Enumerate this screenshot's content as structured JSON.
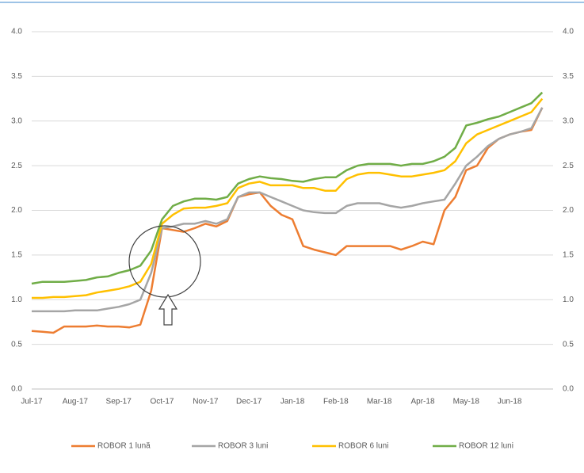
{
  "chart_data": {
    "type": "line",
    "categories": [
      "Jul-17",
      null,
      null,
      null,
      "Aug-17",
      null,
      null,
      null,
      "Sep-17",
      null,
      null,
      null,
      "Oct-17",
      null,
      null,
      null,
      "Nov-17",
      null,
      null,
      null,
      "Dec-17",
      null,
      null,
      null,
      "Jan-18",
      null,
      null,
      null,
      "Feb-18",
      null,
      null,
      null,
      "Mar-18",
      null,
      null,
      null,
      "Apr-18",
      null,
      null,
      null,
      "May-18",
      null,
      null,
      null,
      "Jun-18",
      null,
      null,
      null
    ],
    "series": [
      {
        "name": "ROBOR 1 lună",
        "color": "#ed7d31",
        "values": [
          0.65,
          0.64,
          0.63,
          0.7,
          0.7,
          0.7,
          0.71,
          0.7,
          0.7,
          0.69,
          0.72,
          1.1,
          1.8,
          1.78,
          1.76,
          1.8,
          1.85,
          1.82,
          1.88,
          2.15,
          2.18,
          2.2,
          2.05,
          1.95,
          1.9,
          1.6,
          1.56,
          1.53,
          1.5,
          1.6,
          1.6,
          1.6,
          1.6,
          1.6,
          1.56,
          1.6,
          1.65,
          1.62,
          2.0,
          2.15,
          2.45,
          2.5,
          2.7,
          2.8,
          2.85,
          2.88,
          2.9,
          3.15
        ]
      },
      {
        "name": "ROBOR 3 luni",
        "color": "#a5a5a5",
        "values": [
          0.87,
          0.87,
          0.87,
          0.87,
          0.88,
          0.88,
          0.88,
          0.9,
          0.92,
          0.95,
          1.0,
          1.3,
          1.8,
          1.82,
          1.85,
          1.85,
          1.88,
          1.85,
          1.9,
          2.15,
          2.2,
          2.2,
          2.15,
          2.1,
          2.05,
          2.0,
          1.98,
          1.97,
          1.97,
          2.05,
          2.08,
          2.08,
          2.08,
          2.05,
          2.03,
          2.05,
          2.08,
          2.1,
          2.12,
          2.3,
          2.5,
          2.6,
          2.72,
          2.8,
          2.85,
          2.88,
          2.92,
          3.15
        ]
      },
      {
        "name": "ROBOR 6 luni",
        "color": "#ffc000",
        "values": [
          1.02,
          1.02,
          1.03,
          1.03,
          1.04,
          1.05,
          1.08,
          1.1,
          1.12,
          1.15,
          1.2,
          1.4,
          1.85,
          1.95,
          2.02,
          2.03,
          2.03,
          2.05,
          2.08,
          2.25,
          2.3,
          2.32,
          2.28,
          2.28,
          2.28,
          2.25,
          2.25,
          2.22,
          2.22,
          2.35,
          2.4,
          2.42,
          2.42,
          2.4,
          2.38,
          2.38,
          2.4,
          2.42,
          2.45,
          2.55,
          2.75,
          2.85,
          2.9,
          2.95,
          3.0,
          3.05,
          3.1,
          3.25
        ]
      },
      {
        "name": "ROBOR 12 luni",
        "color": "#70ad47",
        "values": [
          1.18,
          1.2,
          1.2,
          1.2,
          1.21,
          1.22,
          1.25,
          1.26,
          1.3,
          1.33,
          1.38,
          1.55,
          1.9,
          2.05,
          2.1,
          2.13,
          2.13,
          2.12,
          2.15,
          2.3,
          2.35,
          2.38,
          2.36,
          2.35,
          2.33,
          2.32,
          2.35,
          2.37,
          2.37,
          2.45,
          2.5,
          2.52,
          2.52,
          2.52,
          2.5,
          2.52,
          2.52,
          2.55,
          2.6,
          2.7,
          2.95,
          2.98,
          3.02,
          3.05,
          3.1,
          3.15,
          3.2,
          3.32
        ]
      }
    ],
    "ylim": [
      0,
      4
    ],
    "yticks": [
      {
        "value": 0,
        "label": "0.0"
      },
      {
        "value": 0.5,
        "label": "0.5"
      },
      {
        "value": 1,
        "label": "1.0"
      },
      {
        "value": 1.5,
        "label": "1.5"
      },
      {
        "value": 2,
        "label": "2.0"
      },
      {
        "value": 2.5,
        "label": "2.5"
      },
      {
        "value": 3,
        "label": "3.0"
      },
      {
        "value": 3.5,
        "label": "3.5"
      },
      {
        "value": 4,
        "label": "4.0"
      }
    ],
    "y2lim": [
      0,
      4
    ],
    "y2ticks": [
      {
        "value": 0,
        "label": "0.0"
      },
      {
        "value": 0.5,
        "label": "0.5"
      },
      {
        "value": 1,
        "label": "1.0"
      },
      {
        "value": 1.5,
        "label": "1.5"
      },
      {
        "value": 2,
        "label": "2.0"
      },
      {
        "value": 2.5,
        "label": "2.5"
      },
      {
        "value": 3,
        "label": "3.0"
      },
      {
        "value": 3.5,
        "label": "3.5"
      },
      {
        "value": 4,
        "label": "4.0"
      }
    ],
    "grid": true,
    "legend": "bottom"
  }
}
